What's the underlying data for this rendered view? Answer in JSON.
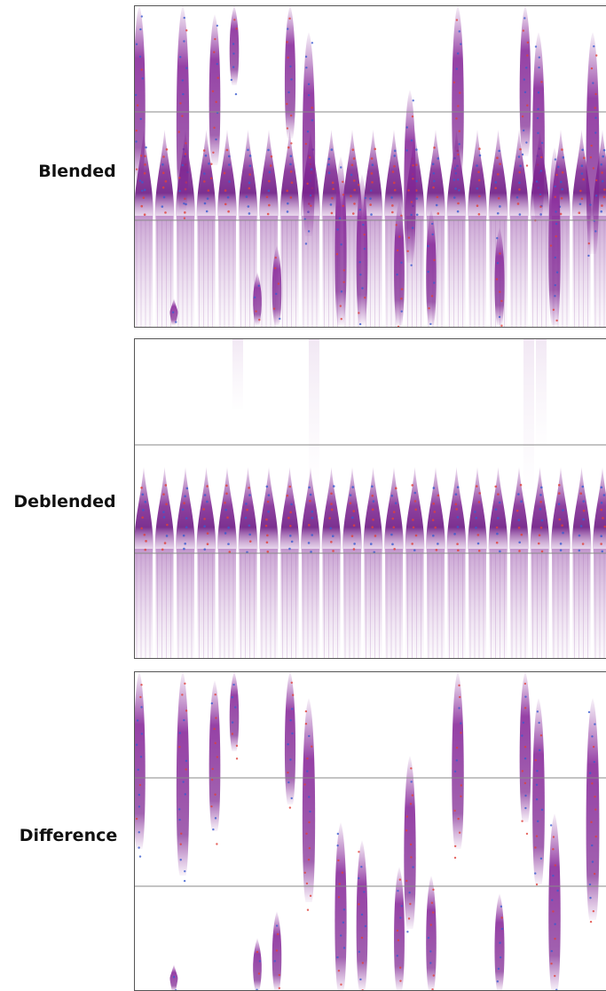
{
  "panels": [
    {
      "label": "Blended"
    },
    {
      "label": "Deblended"
    },
    {
      "label": "Difference"
    }
  ]
}
